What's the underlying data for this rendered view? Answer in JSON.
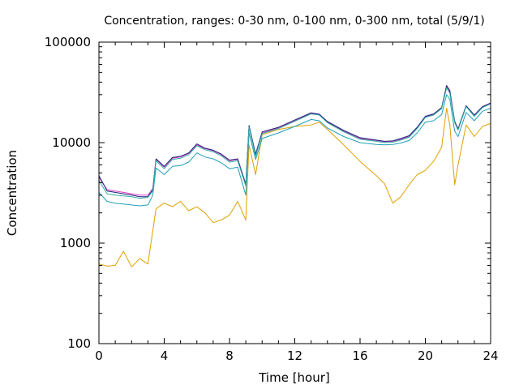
{
  "chart_data": {
    "type": "line",
    "title": "Concentration, ranges: 0-30 nm, 0-100 nm, 0-300 nm, total (5/9/1)",
    "xlabel": "Time [hour]",
    "ylabel": "Concentration",
    "xlim": [
      0,
      24
    ],
    "ylim": [
      100,
      100000
    ],
    "yscale": "log",
    "grid": false,
    "x_ticks": [
      0,
      4,
      8,
      12,
      16,
      20,
      24
    ],
    "x_tick_labels": [
      "0",
      "4",
      "8",
      "12",
      "16",
      "20",
      "24"
    ],
    "y_ticks": [
      100,
      1000,
      10000,
      100000
    ],
    "y_tick_labels": [
      "100",
      "1000",
      "10000",
      "100000"
    ],
    "series": [
      {
        "color": "#e0a000",
        "x": [
          0,
          0.5,
          1,
          1.5,
          2,
          2.5,
          3,
          3.5,
          4,
          4.5,
          5,
          5.5,
          6,
          6.5,
          7,
          7.5,
          8,
          8.5,
          9,
          9.2,
          9.6,
          10,
          11,
          12,
          13,
          13.5,
          14,
          15,
          16,
          17,
          17.5,
          18,
          18.5,
          19,
          19.5,
          20,
          20.5,
          21,
          21.3,
          21.5,
          21.8,
          22,
          22.5,
          23,
          23.5,
          24
        ],
        "y": [
          620,
          590,
          600,
          830,
          580,
          700,
          620,
          2200,
          2500,
          2300,
          2600,
          2100,
          2300,
          2000,
          1600,
          1700,
          1900,
          2600,
          1700,
          9500,
          4800,
          12000,
          13500,
          14500,
          15000,
          16000,
          13500,
          9500,
          6500,
          4700,
          3900,
          2500,
          2900,
          3800,
          4800,
          5300,
          6500,
          9000,
          22000,
          15000,
          3800,
          6000,
          15000,
          11500,
          14500,
          15500
        ]
      },
      {
        "color": "#20a0b8",
        "x": [
          0,
          0.5,
          1,
          1.5,
          2,
          2.5,
          3,
          3.3,
          3.5,
          4,
          4.5,
          5,
          5.5,
          6,
          6.5,
          7,
          7.5,
          8,
          8.5,
          9,
          9.2,
          9.6,
          10,
          11,
          12,
          13,
          13.5,
          14,
          15,
          16,
          17,
          17.5,
          18,
          18.5,
          19,
          19.5,
          20,
          20.5,
          21,
          21.3,
          21.5,
          21.8,
          22,
          22.5,
          23,
          23.5,
          24
        ],
        "y": [
          3200,
          2600,
          2500,
          2450,
          2400,
          2350,
          2400,
          3000,
          5600,
          4800,
          5800,
          5900,
          6400,
          7900,
          7200,
          6900,
          6300,
          5500,
          5700,
          3000,
          12500,
          6800,
          11000,
          12500,
          14500,
          17000,
          16500,
          14000,
          11500,
          10000,
          9600,
          9500,
          9600,
          9900,
          10500,
          12500,
          16000,
          16500,
          19000,
          30000,
          27000,
          13000,
          11500,
          20000,
          16500,
          20500,
          22000
        ]
      },
      {
        "color": "#e040c0",
        "x": [
          0,
          0.5,
          1,
          1.5,
          2,
          2.5,
          3,
          3.3,
          3.5,
          4,
          4.5,
          5,
          5.5,
          6,
          6.5,
          7,
          7.5,
          8,
          8.5,
          9,
          9.2,
          9.6,
          10,
          11,
          12,
          13,
          13.5,
          14,
          15,
          16,
          17,
          17.5,
          18,
          18.5,
          19,
          19.5,
          20,
          20.5,
          21,
          21.3,
          21.5,
          21.8,
          22,
          22.5,
          23,
          23.5,
          24
        ],
        "y": [
          4500,
          3400,
          3300,
          3200,
          3100,
          3000,
          3000,
          3500,
          6800,
          5700,
          7000,
          7200,
          7800,
          9500,
          8700,
          8300,
          7600,
          6600,
          6800,
          3900,
          14500,
          7500,
          12500,
          14000,
          16500,
          19500,
          19000,
          16000,
          13000,
          11000,
          10500,
          10200,
          10300,
          10800,
          11500,
          14000,
          18000,
          19000,
          22000,
          36000,
          32000,
          16000,
          13500,
          23000,
          18500,
          22500,
          24500
        ]
      },
      {
        "color": "#202080",
        "x": [
          0,
          0.5,
          1,
          1.5,
          2,
          2.5,
          3,
          3.3,
          3.5,
          4,
          4.5,
          5,
          5.5,
          6,
          6.5,
          7,
          7.5,
          8,
          8.5,
          9,
          9.2,
          9.6,
          10,
          11,
          12,
          13,
          13.5,
          14,
          15,
          16,
          17,
          17.5,
          18,
          18.5,
          19,
          19.5,
          20,
          20.5,
          21,
          21.3,
          21.5,
          21.8,
          22,
          22.5,
          23,
          23.5,
          24
        ],
        "y": [
          4700,
          3300,
          3200,
          3100,
          3000,
          2900,
          2900,
          3400,
          6900,
          5800,
          7100,
          7300,
          7900,
          9700,
          8800,
          8400,
          7700,
          6700,
          6900,
          3800,
          14800,
          7700,
          12800,
          14200,
          16800,
          19800,
          19200,
          16200,
          13200,
          11200,
          10600,
          10300,
          10400,
          11000,
          11700,
          14200,
          18300,
          19300,
          22300,
          37000,
          33000,
          16300,
          13700,
          23300,
          18800,
          22800,
          24800
        ]
      },
      {
        "color": "#30b0a0",
        "x": [
          0,
          0.5,
          1,
          1.5,
          2,
          2.5,
          3,
          3.3,
          3.5,
          4,
          4.5,
          5,
          5.5,
          6,
          6.5,
          7,
          7.5,
          8,
          8.5,
          9,
          9.2,
          9.6,
          10,
          11,
          12,
          13,
          13.5,
          14,
          15,
          16,
          17,
          17.5,
          18,
          18.5,
          19,
          19.5,
          20,
          20.5,
          21,
          21.3,
          21.5,
          21.8,
          22,
          22.5,
          23,
          23.5,
          24
        ],
        "y": [
          4200,
          3100,
          3000,
          2950,
          2900,
          2800,
          2850,
          3300,
          6600,
          5500,
          6800,
          7000,
          7600,
          9300,
          8500,
          8100,
          7400,
          6400,
          6600,
          3700,
          14300,
          7300,
          12300,
          13800,
          16300,
          19300,
          18800,
          15800,
          12800,
          10800,
          10300,
          10000,
          10100,
          10600,
          11300,
          13800,
          17800,
          18800,
          21800,
          35000,
          31000,
          15800,
          13300,
          22800,
          18300,
          22300,
          24300
        ]
      }
    ]
  }
}
